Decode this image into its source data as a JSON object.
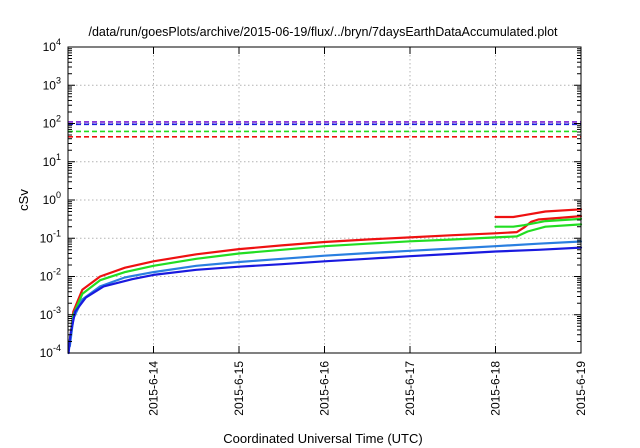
{
  "chart_data": {
    "type": "line",
    "title": "/data/run/goesPlots/archive/2015-06-19/flux/../bryn/7daysEarthDataAccumulated.plot",
    "xlabel": "Coordinated Universal Time (UTC)",
    "ylabel": "cSv",
    "x_domain": [
      "2015-06-13",
      "2015-06-19"
    ],
    "x_ticks": [
      "2015-6-14",
      "2015-6-15",
      "2015-6-16",
      "2015-6-17",
      "2015-6-18",
      "2015-6-19"
    ],
    "y_scale": "log",
    "y_ticks": [
      {
        "base": "10",
        "exp": "-4"
      },
      {
        "base": "10",
        "exp": "-3"
      },
      {
        "base": "10",
        "exp": "-2"
      },
      {
        "base": "10",
        "exp": "-1"
      },
      {
        "base": "10",
        "exp": "0"
      },
      {
        "base": "10",
        "exp": "1"
      },
      {
        "base": "10",
        "exp": "2"
      },
      {
        "base": "10",
        "exp": "3"
      },
      {
        "base": "10",
        "exp": "4"
      }
    ],
    "ylim": [
      0.0001,
      10000
    ],
    "grid": true,
    "thresholds": [
      {
        "y": 110,
        "color": "#7a1fd0",
        "dash": "dashed"
      },
      {
        "y": 95,
        "color": "#1a1adf",
        "dash": "dashed"
      },
      {
        "y": 62,
        "color": "#22dd22",
        "dash": "dashed"
      },
      {
        "y": 45,
        "color": "#ee1111",
        "dash": "dashed"
      }
    ],
    "series": [
      {
        "color": "#ee1111",
        "points": [
          [
            "2015-06-13T00:30",
            0.0002
          ],
          [
            "2015-06-13T01:30",
            0.0012
          ],
          [
            "2015-06-13T04:00",
            0.0045
          ],
          [
            "2015-06-13T09:00",
            0.01
          ],
          [
            "2015-06-13T16:00",
            0.017
          ],
          [
            "2015-06-14T00:00",
            0.025
          ],
          [
            "2015-06-14T12:00",
            0.038
          ],
          [
            "2015-06-15T00:00",
            0.052
          ],
          [
            "2015-06-15T12:00",
            0.065
          ],
          [
            "2015-06-16T00:00",
            0.08
          ],
          [
            "2015-06-16T12:00",
            0.093
          ],
          [
            "2015-06-17T00:00",
            0.105
          ],
          [
            "2015-06-17T12:00",
            0.12
          ],
          [
            "2015-06-18T00:00",
            0.135
          ],
          [
            "2015-06-18T06:00",
            0.145
          ],
          [
            "2015-06-18T08:00",
            0.19
          ],
          [
            "2015-06-18T10:00",
            0.27
          ],
          [
            "2015-06-18T12:00",
            0.31
          ],
          [
            "2015-06-18T18:00",
            0.34
          ],
          [
            "2015-06-19T00:00",
            0.38
          ]
        ]
      },
      {
        "color": "#ee1111",
        "points": [
          [
            "2015-06-18T00:00",
            0.36
          ],
          [
            "2015-06-18T05:00",
            0.36
          ],
          [
            "2015-06-18T08:00",
            0.4
          ],
          [
            "2015-06-18T14:00",
            0.5
          ],
          [
            "2015-06-19T00:00",
            0.57
          ]
        ]
      },
      {
        "color": "#22dd22",
        "points": [
          [
            "2015-06-13T00:30",
            0.0002
          ],
          [
            "2015-06-13T01:30",
            0.001
          ],
          [
            "2015-06-13T04:00",
            0.0035
          ],
          [
            "2015-06-13T09:00",
            0.008
          ],
          [
            "2015-06-13T16:00",
            0.013
          ],
          [
            "2015-06-14T00:00",
            0.019
          ],
          [
            "2015-06-14T12:00",
            0.029
          ],
          [
            "2015-06-15T00:00",
            0.04
          ],
          [
            "2015-06-15T12:00",
            0.05
          ],
          [
            "2015-06-16T00:00",
            0.062
          ],
          [
            "2015-06-16T12:00",
            0.072
          ],
          [
            "2015-06-17T00:00",
            0.083
          ],
          [
            "2015-06-17T12:00",
            0.093
          ],
          [
            "2015-06-18T00:00",
            0.105
          ],
          [
            "2015-06-18T06:00",
            0.112
          ],
          [
            "2015-06-18T09:00",
            0.15
          ],
          [
            "2015-06-18T14:00",
            0.2
          ],
          [
            "2015-06-19T00:00",
            0.23
          ]
        ]
      },
      {
        "color": "#22dd22",
        "points": [
          [
            "2015-06-18T00:00",
            0.2
          ],
          [
            "2015-06-18T05:00",
            0.2
          ],
          [
            "2015-06-18T08:00",
            0.22
          ],
          [
            "2015-06-18T14:00",
            0.28
          ],
          [
            "2015-06-19T00:00",
            0.32
          ]
        ]
      },
      {
        "color": "#2a7fe0",
        "points": [
          [
            "2015-06-13T00:30",
            0.00015
          ],
          [
            "2015-06-13T01:30",
            0.0008
          ],
          [
            "2015-06-13T04:00",
            0.0025
          ],
          [
            "2015-06-13T09:00",
            0.0055
          ],
          [
            "2015-06-13T16:00",
            0.0095
          ],
          [
            "2015-06-14T00:00",
            0.013
          ],
          [
            "2015-06-14T12:00",
            0.019
          ],
          [
            "2015-06-15T00:00",
            0.024
          ],
          [
            "2015-06-15T12:00",
            0.029
          ],
          [
            "2015-06-16T00:00",
            0.035
          ],
          [
            "2015-06-16T12:00",
            0.041
          ],
          [
            "2015-06-17T00:00",
            0.047
          ],
          [
            "2015-06-17T12:00",
            0.054
          ],
          [
            "2015-06-18T00:00",
            0.062
          ],
          [
            "2015-06-18T12:00",
            0.072
          ],
          [
            "2015-06-19T00:00",
            0.082
          ]
        ]
      },
      {
        "color": "#1a1adf",
        "points": [
          [
            "2015-06-13T00:10",
            0.0001
          ],
          [
            "2015-06-13T00:40",
            0.0003
          ],
          [
            "2015-06-13T02:00",
            0.0012
          ],
          [
            "2015-06-13T05:00",
            0.0028
          ],
          [
            "2015-06-13T10:00",
            0.0055
          ],
          [
            "2015-06-13T18:00",
            0.0085
          ],
          [
            "2015-06-14T00:00",
            0.011
          ],
          [
            "2015-06-14T12:00",
            0.015
          ],
          [
            "2015-06-15T00:00",
            0.018
          ],
          [
            "2015-06-15T12:00",
            0.021
          ],
          [
            "2015-06-16T00:00",
            0.025
          ],
          [
            "2015-06-16T12:00",
            0.029
          ],
          [
            "2015-06-17T00:00",
            0.034
          ],
          [
            "2015-06-17T12:00",
            0.039
          ],
          [
            "2015-06-18T00:00",
            0.045
          ],
          [
            "2015-06-18T12:00",
            0.05
          ],
          [
            "2015-06-19T00:00",
            0.057
          ]
        ]
      }
    ]
  }
}
